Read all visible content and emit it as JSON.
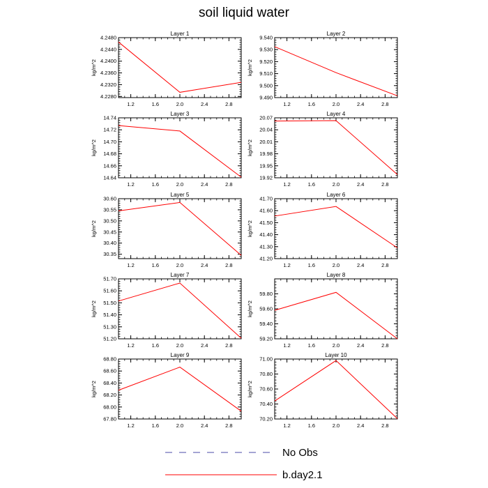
{
  "title": "soil liquid water",
  "colors": {
    "series": "#ff0000",
    "no_obs": "#4a4aa8",
    "axis": "#000000"
  },
  "legend": [
    {
      "label": "No Obs",
      "style": "dashed",
      "color": "#4a4aa8"
    },
    {
      "label": "b.day2.1",
      "style": "solid",
      "color": "#ff0000"
    }
  ],
  "chart_data": [
    {
      "type": "line",
      "title": "Layer 1",
      "ylabel": "kg/m^2",
      "xlim": [
        1.0,
        3.0
      ],
      "xticks": [
        "1.2",
        "1.6",
        "2.0",
        "2.4",
        "2.8"
      ],
      "xtick_values": [
        1.2,
        1.6,
        2.0,
        2.4,
        2.8
      ],
      "ylim": [
        4.2276,
        4.248
      ],
      "yticks": [
        "4.2480",
        "4.2440",
        "4.2400",
        "4.2360",
        "4.2320",
        "4.2280"
      ],
      "ytick_values": [
        4.248,
        4.244,
        4.24,
        4.236,
        4.232,
        4.228
      ],
      "series": [
        {
          "name": "b.day2.1",
          "x": [
            1,
            2,
            3
          ],
          "y": [
            4.2465,
            4.2294,
            4.2328
          ]
        }
      ]
    },
    {
      "type": "line",
      "title": "Layer 2",
      "ylabel": "kg/m^2",
      "xlim": [
        1.0,
        3.0
      ],
      "xticks": [
        "1.2",
        "1.6",
        "2.0",
        "2.4",
        "2.8"
      ],
      "xtick_values": [
        1.2,
        1.6,
        2.0,
        2.4,
        2.8
      ],
      "ylim": [
        9.49,
        9.54
      ],
      "yticks": [
        "9.540",
        "9.530",
        "9.520",
        "9.510",
        "9.500",
        "9.490"
      ],
      "ytick_values": [
        9.54,
        9.53,
        9.52,
        9.51,
        9.5,
        9.49
      ],
      "series": [
        {
          "name": "b.day2.1",
          "x": [
            1,
            2,
            3
          ],
          "y": [
            9.5325,
            9.5108,
            9.4915
          ]
        }
      ]
    },
    {
      "type": "line",
      "title": "Layer 3",
      "ylabel": "kg/m^2",
      "xlim": [
        1.0,
        3.0
      ],
      "xticks": [
        "1.2",
        "1.6",
        "2.0",
        "2.4",
        "2.8"
      ],
      "xtick_values": [
        1.2,
        1.6,
        2.0,
        2.4,
        2.8
      ],
      "ylim": [
        14.64,
        14.74
      ],
      "yticks": [
        "14.74",
        "14.72",
        "14.70",
        "14.68",
        "14.66",
        "14.64"
      ],
      "ytick_values": [
        14.74,
        14.72,
        14.7,
        14.68,
        14.66,
        14.64
      ],
      "series": [
        {
          "name": "b.day2.1",
          "x": [
            1,
            2,
            3
          ],
          "y": [
            14.727,
            14.718,
            14.641
          ]
        }
      ]
    },
    {
      "type": "line",
      "title": "Layer 4",
      "ylabel": "kg/m^2",
      "xlim": [
        1.0,
        3.0
      ],
      "xticks": [
        "1.2",
        "1.6",
        "2.0",
        "2.4",
        "2.8"
      ],
      "xtick_values": [
        1.2,
        1.6,
        2.0,
        2.4,
        2.8
      ],
      "ylim": [
        19.92,
        20.07
      ],
      "yticks": [
        "20.07",
        "20.04",
        "20.01",
        "19.98",
        "19.95",
        "19.92"
      ],
      "ytick_values": [
        20.07,
        20.04,
        20.01,
        19.98,
        19.95,
        19.92
      ],
      "series": [
        {
          "name": "b.day2.1",
          "x": [
            1,
            2,
            3
          ],
          "y": [
            20.062,
            20.063,
            19.928
          ]
        }
      ]
    },
    {
      "type": "line",
      "title": "Layer 5",
      "ylabel": "kg/m^2",
      "xlim": [
        1.0,
        3.0
      ],
      "xticks": [
        "1.2",
        "1.6",
        "2.0",
        "2.4",
        "2.8"
      ],
      "xtick_values": [
        1.2,
        1.6,
        2.0,
        2.4,
        2.8
      ],
      "ylim": [
        30.33,
        30.6
      ],
      "yticks": [
        "30.60",
        "30.55",
        "30.50",
        "30.45",
        "30.40",
        "30.35"
      ],
      "ytick_values": [
        30.6,
        30.55,
        30.5,
        30.45,
        30.4,
        30.35
      ],
      "series": [
        {
          "name": "b.day2.1",
          "x": [
            1,
            2,
            3
          ],
          "y": [
            30.545,
            30.583,
            30.345
          ]
        }
      ]
    },
    {
      "type": "line",
      "title": "Layer 6",
      "ylabel": "kg/m^2",
      "xlim": [
        1.0,
        3.0
      ],
      "xticks": [
        "1.2",
        "1.6",
        "2.0",
        "2.4",
        "2.8"
      ],
      "xtick_values": [
        1.2,
        1.6,
        2.0,
        2.4,
        2.8
      ],
      "ylim": [
        41.2,
        41.7
      ],
      "yticks": [
        "41.70",
        "41.60",
        "41.50",
        "41.40",
        "41.30",
        "41.20"
      ],
      "ytick_values": [
        41.7,
        41.6,
        41.5,
        41.4,
        41.3,
        41.2
      ],
      "series": [
        {
          "name": "b.day2.1",
          "x": [
            1,
            2,
            3
          ],
          "y": [
            41.555,
            41.635,
            41.29
          ]
        }
      ]
    },
    {
      "type": "line",
      "title": "Layer 7",
      "ylabel": "kg/m^2",
      "xlim": [
        1.0,
        3.0
      ],
      "xticks": [
        "1.2",
        "1.6",
        "2.0",
        "2.4",
        "2.8"
      ],
      "xtick_values": [
        1.2,
        1.6,
        2.0,
        2.4,
        2.8
      ],
      "ylim": [
        51.2,
        51.7
      ],
      "yticks": [
        "51.70",
        "51.60",
        "51.50",
        "51.40",
        "51.30",
        "51.20"
      ],
      "ytick_values": [
        51.7,
        51.6,
        51.5,
        51.4,
        51.3,
        51.2
      ],
      "series": [
        {
          "name": "b.day2.1",
          "x": [
            1,
            2,
            3
          ],
          "y": [
            51.515,
            51.665,
            51.205
          ]
        }
      ]
    },
    {
      "type": "line",
      "title": "Layer 8",
      "ylabel": "kg/m^2",
      "xlim": [
        1.0,
        3.0
      ],
      "xticks": [
        "1.2",
        "1.6",
        "2.0",
        "2.4",
        "2.8"
      ],
      "xtick_values": [
        1.2,
        1.6,
        2.0,
        2.4,
        2.8
      ],
      "ylim": [
        59.2,
        60.0
      ],
      "yticks": [
        "59.80",
        "59.60",
        "59.40",
        "59.20"
      ],
      "ytick_values": [
        59.8,
        59.6,
        59.4,
        59.2
      ],
      "series": [
        {
          "name": "b.day2.1",
          "x": [
            1,
            2,
            3
          ],
          "y": [
            59.58,
            59.82,
            59.2
          ]
        }
      ]
    },
    {
      "type": "line",
      "title": "Layer 9",
      "ylabel": "kg/m^2",
      "xlim": [
        1.0,
        3.0
      ],
      "xticks": [
        "1.2",
        "1.6",
        "2.0",
        "2.4",
        "2.8"
      ],
      "xtick_values": [
        1.2,
        1.6,
        2.0,
        2.4,
        2.8
      ],
      "ylim": [
        67.8,
        68.8
      ],
      "yticks": [
        "68.80",
        "68.60",
        "68.40",
        "68.20",
        "68.00",
        "67.80"
      ],
      "ytick_values": [
        68.8,
        68.6,
        68.4,
        68.2,
        68.0,
        67.8
      ],
      "series": [
        {
          "name": "b.day2.1",
          "x": [
            1,
            2,
            3
          ],
          "y": [
            68.28,
            68.665,
            67.93
          ]
        }
      ]
    },
    {
      "type": "line",
      "title": "Layer 10",
      "ylabel": "kg/m^2",
      "xlim": [
        1.0,
        3.0
      ],
      "xticks": [
        "1.2",
        "1.6",
        "2.0",
        "2.4",
        "2.8"
      ],
      "xtick_values": [
        1.2,
        1.6,
        2.0,
        2.4,
        2.8
      ],
      "ylim": [
        70.2,
        71.0
      ],
      "yticks": [
        "71.00",
        "70.80",
        "70.60",
        "70.40",
        "70.20"
      ],
      "ytick_values": [
        71.0,
        70.8,
        70.6,
        70.4,
        70.2
      ],
      "series": [
        {
          "name": "b.day2.1",
          "x": [
            1,
            2,
            3
          ],
          "y": [
            70.44,
            70.98,
            70.205
          ]
        }
      ]
    }
  ]
}
